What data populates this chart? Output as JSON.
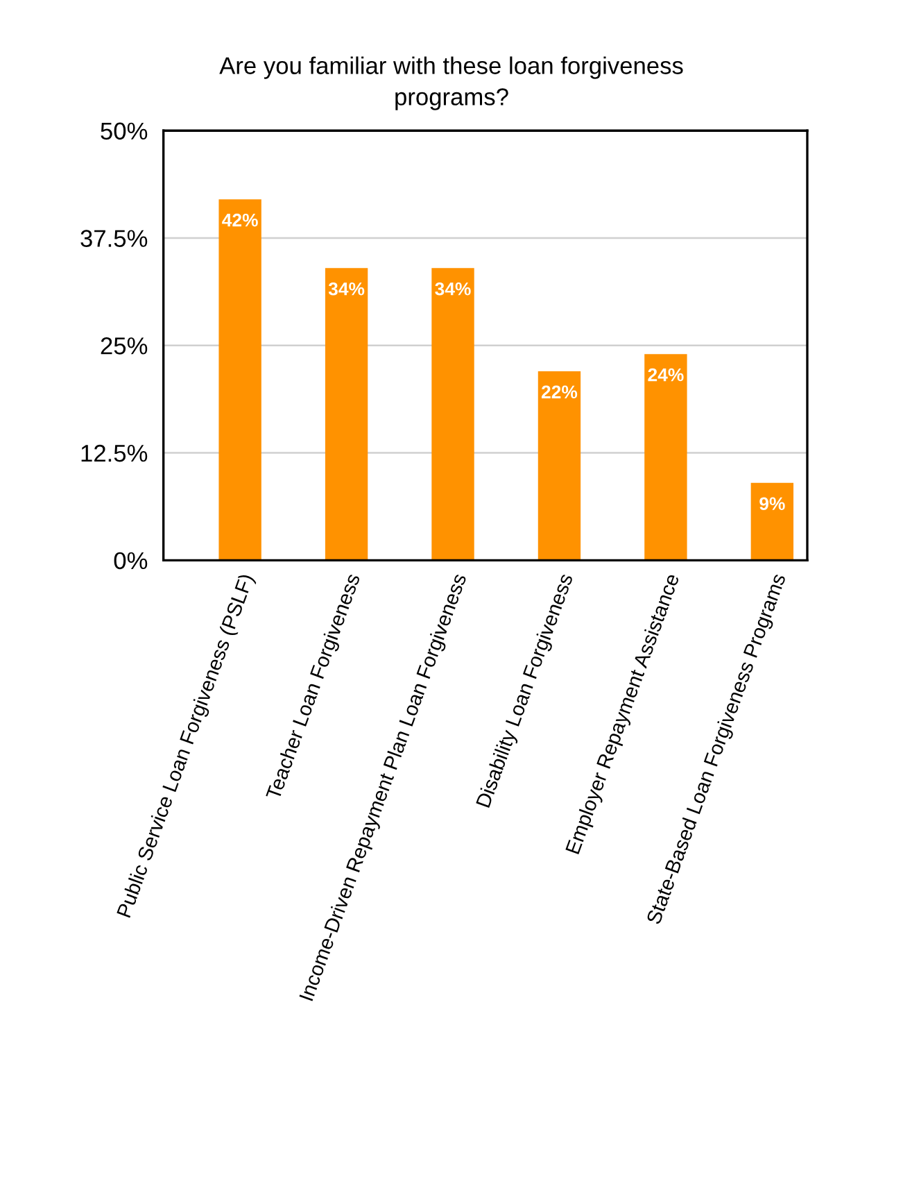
{
  "chart_data": {
    "type": "bar",
    "title": "Are you familiar with these loan forgiveness\nprograms?",
    "categories": [
      "Public Service Loan Forgiveness (PSLF)",
      "Teacher Loan Forgiveness",
      "Income-Driven Repayment Plan Loan Forgiveness",
      "Disability Loan Forgiveness",
      "Employer Repayment Assistance",
      "State-Based Loan Forgiveness Programs"
    ],
    "values": [
      42,
      34,
      34,
      22,
      24,
      9
    ],
    "color": "#ff9200",
    "value_labels": [
      "42%",
      "34%",
      "34%",
      "22%",
      "24%",
      "9%"
    ],
    "ylim": [
      0,
      50
    ],
    "yticks": [
      {
        "value": 0,
        "label": "0%"
      },
      {
        "value": 12.5,
        "label": "12.5%"
      },
      {
        "value": 25,
        "label": "25%"
      },
      {
        "value": 37.5,
        "label": "37.5%"
      },
      {
        "value": 50,
        "label": "50%"
      }
    ],
    "grid": "y",
    "legend": false
  }
}
